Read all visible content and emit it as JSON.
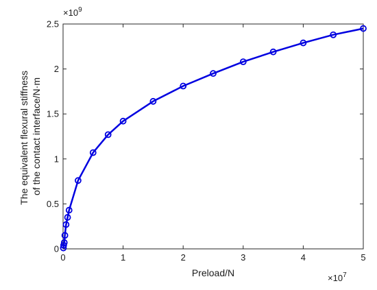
{
  "chart_data": {
    "type": "line",
    "xlabel": "Preload/N",
    "ylabel_lines": [
      "The equivalent flexural stiffness",
      "of the contact interface/N·m"
    ],
    "x_multiplier_label": "×10",
    "x_multiplier_exp": "7",
    "y_multiplier_label": "×10",
    "y_multiplier_exp": "9",
    "xlim": [
      0,
      5
    ],
    "ylim": [
      0,
      2.5
    ],
    "x_ticks": [
      0,
      1,
      2,
      3,
      4,
      5
    ],
    "x_tick_labels": [
      "0",
      "1",
      "2",
      "3",
      "4",
      "5"
    ],
    "y_ticks": [
      0,
      0.5,
      1,
      1.5,
      2,
      2.5
    ],
    "y_tick_labels": [
      "0",
      "0.5",
      "1",
      "1.5",
      "2",
      "2.5"
    ],
    "grid": false,
    "series": [
      {
        "color": "#0000e0",
        "marker": "circle",
        "x": [
          0.005,
          0.01,
          0.02,
          0.03,
          0.05,
          0.075,
          0.1,
          0.25,
          0.5,
          0.75,
          1.0,
          1.5,
          2.0,
          2.5,
          3.0,
          3.5,
          4.0,
          4.5,
          5.0
        ],
        "y": [
          0.01,
          0.04,
          0.07,
          0.15,
          0.27,
          0.35,
          0.43,
          0.76,
          1.07,
          1.27,
          1.42,
          1.64,
          1.81,
          1.95,
          2.08,
          2.19,
          2.29,
          2.38,
          2.45
        ]
      }
    ]
  }
}
